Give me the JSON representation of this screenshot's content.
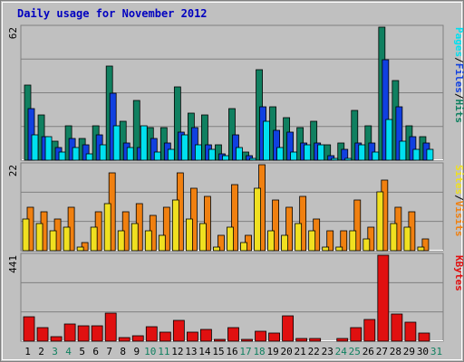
{
  "title": "Daily usage for November 2012",
  "colors": {
    "pages": "#00e0f0",
    "files": "#1040e0",
    "hits": "#108060",
    "visits": "#f08010",
    "sites": "#f0e020",
    "kbytes": "#e01010",
    "weekend": "#108060",
    "weekday": "#000000",
    "panel_bg": "#c0c0c0",
    "border": "#808080"
  },
  "chart_data": [
    {
      "type": "bar",
      "panel": "top",
      "scale_max_label": "62",
      "ylim": [
        0,
        62
      ],
      "categories": [
        "1",
        "2",
        "3",
        "4",
        "5",
        "6",
        "7",
        "8",
        "9",
        "10",
        "11",
        "12",
        "13",
        "14",
        "15",
        "16",
        "17",
        "18",
        "19",
        "20",
        "21",
        "22",
        "23",
        "24",
        "25",
        "26",
        "27",
        "28",
        "29",
        "30",
        "31"
      ],
      "series": [
        {
          "name": "Hits",
          "values": [
            35,
            21,
            9,
            16,
            10,
            16,
            44,
            18,
            28,
            15,
            15,
            34,
            22,
            21,
            7,
            24,
            4,
            42,
            25,
            20,
            15,
            18,
            7,
            8,
            23,
            16,
            62,
            37,
            16,
            11,
            0
          ]
        },
        {
          "name": "Files",
          "values": [
            24,
            11,
            6,
            10,
            7,
            12,
            31,
            8,
            6,
            10,
            8,
            13,
            15,
            7,
            3,
            12,
            2,
            25,
            14,
            13,
            8,
            8,
            2,
            5,
            8,
            8,
            47,
            25,
            11,
            8,
            0
          ]
        },
        {
          "name": "Pages",
          "values": [
            12,
            11,
            4,
            6,
            3,
            7,
            16,
            6,
            16,
            4,
            5,
            12,
            7,
            5,
            2,
            6,
            1,
            18,
            6,
            4,
            7,
            7,
            1,
            1,
            7,
            4,
            19,
            9,
            5,
            5,
            0
          ]
        }
      ],
      "legend": [
        "Pages",
        "/",
        "Files",
        "/",
        "Hits"
      ]
    },
    {
      "type": "bar",
      "panel": "middle",
      "scale_max_label": "22",
      "ylim": [
        0,
        22
      ],
      "categories": [
        "1",
        "2",
        "3",
        "4",
        "5",
        "6",
        "7",
        "8",
        "9",
        "10",
        "11",
        "12",
        "13",
        "14",
        "15",
        "16",
        "17",
        "18",
        "19",
        "20",
        "21",
        "22",
        "23",
        "24",
        "25",
        "26",
        "27",
        "28",
        "29",
        "30",
        "31"
      ],
      "series": [
        {
          "name": "Visits",
          "values": [
            11,
            10,
            8,
            11,
            2,
            10,
            20,
            10,
            12,
            9,
            11,
            20,
            16,
            14,
            4,
            17,
            4,
            22,
            13,
            11,
            14,
            8,
            5,
            5,
            13,
            6,
            18,
            11,
            10,
            3,
            0
          ]
        },
        {
          "name": "Sites",
          "values": [
            8,
            7,
            5,
            6,
            1,
            6,
            12,
            5,
            7,
            5,
            4,
            13,
            8,
            7,
            1,
            6,
            2,
            16,
            5,
            4,
            7,
            5,
            1,
            1,
            5,
            3,
            15,
            7,
            6,
            1,
            0
          ]
        }
      ],
      "legend": [
        "Sites",
        "/",
        "Visits"
      ]
    },
    {
      "type": "bar",
      "panel": "bottom",
      "scale_max_label": "441",
      "ylim": [
        0,
        441
      ],
      "categories": [
        "1",
        "2",
        "3",
        "4",
        "5",
        "6",
        "7",
        "8",
        "9",
        "10",
        "11",
        "12",
        "13",
        "14",
        "15",
        "16",
        "17",
        "18",
        "19",
        "20",
        "21",
        "22",
        "23",
        "24",
        "25",
        "26",
        "27",
        "28",
        "29",
        "30",
        "31"
      ],
      "series": [
        {
          "name": "KBytes",
          "values": [
            125,
            71,
            25,
            88,
            77,
            81,
            143,
            20,
            26,
            76,
            48,
            108,
            46,
            59,
            11,
            70,
            10,
            52,
            43,
            131,
            15,
            16,
            0,
            13,
            71,
            111,
            441,
            140,
            98,
            44,
            0
          ]
        }
      ],
      "legend": [
        "KBytes"
      ]
    }
  ],
  "weekend_days": [
    "3",
    "4",
    "10",
    "11",
    "17",
    "18",
    "24",
    "25",
    "31"
  ]
}
